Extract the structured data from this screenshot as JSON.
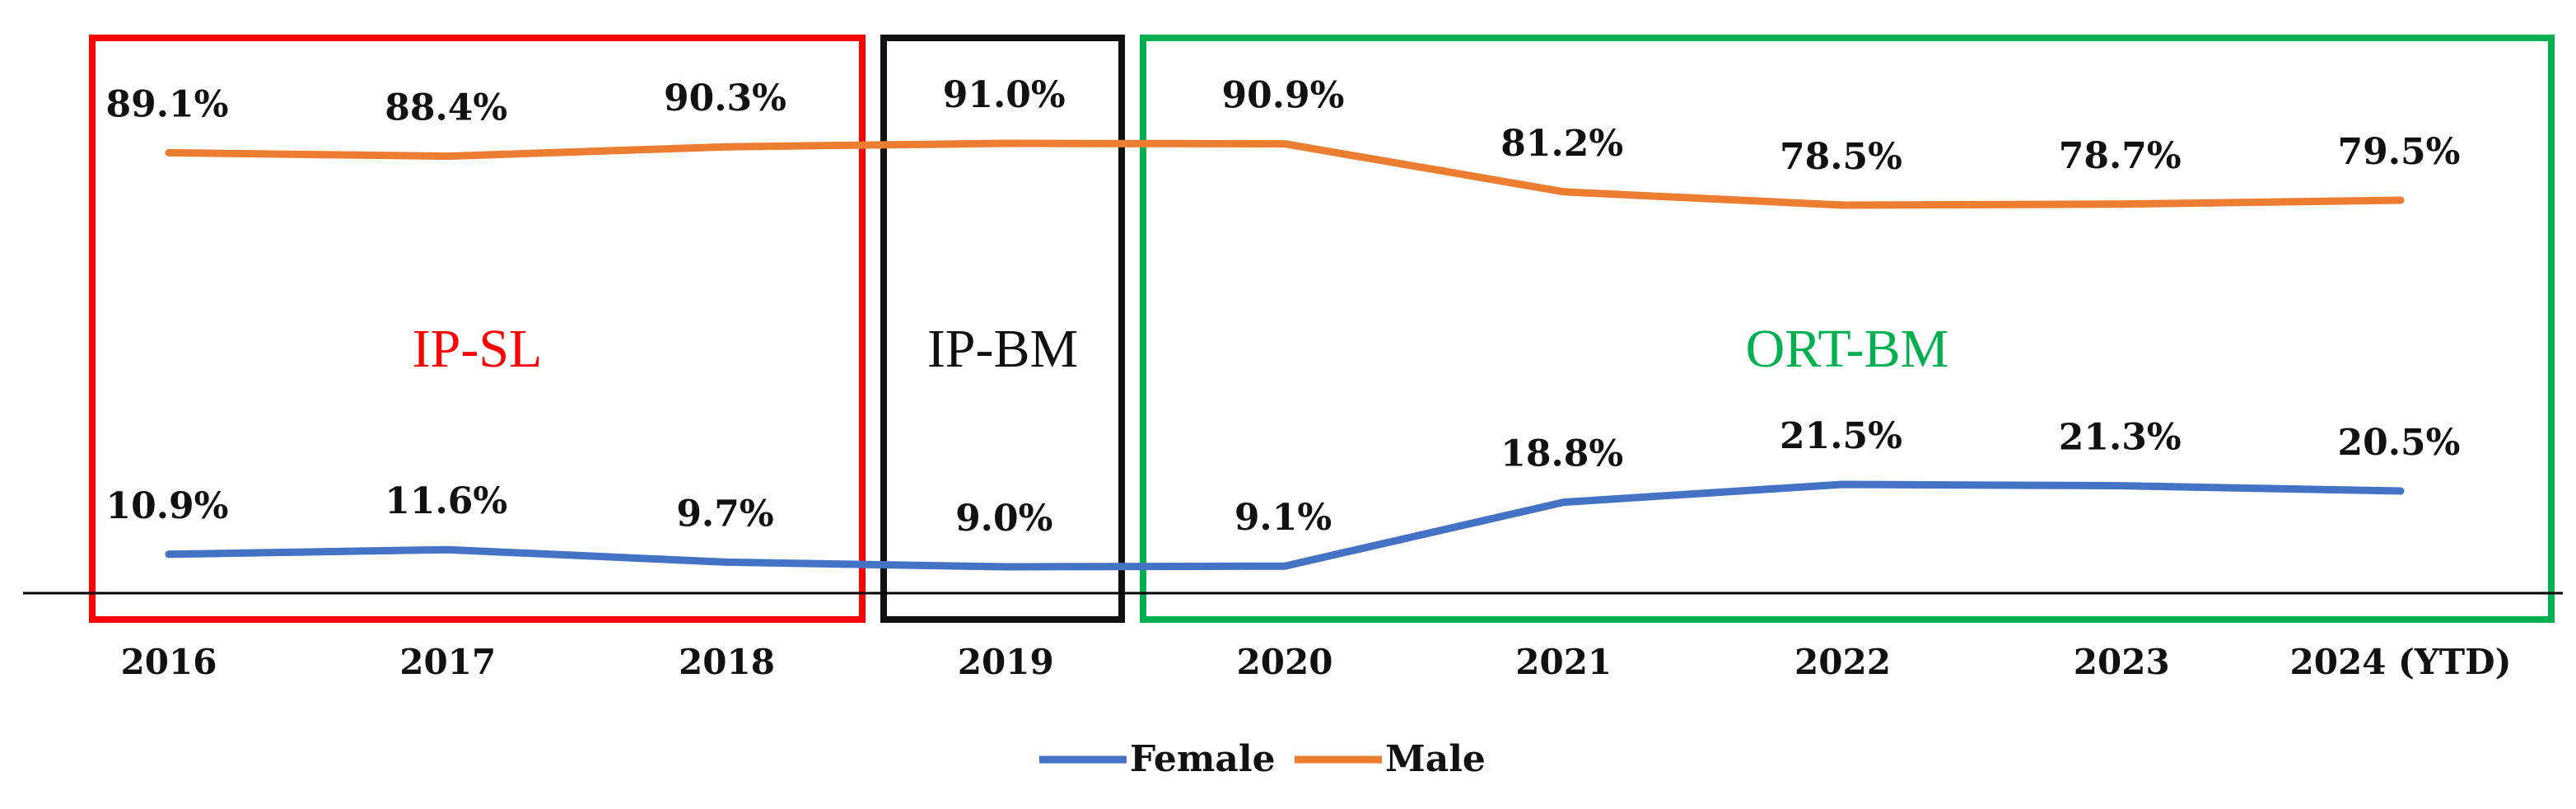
{
  "chart_data": {
    "type": "line",
    "categories": [
      "2016",
      "2017",
      "2018",
      "2019",
      "2020",
      "2021",
      "2022",
      "2023",
      "2024 (YTD)"
    ],
    "series": [
      {
        "name": "Female",
        "color": "#4472C4",
        "values": [
          10.9,
          11.6,
          9.7,
          9.0,
          9.1,
          18.8,
          21.5,
          21.3,
          20.5
        ],
        "labels": [
          "10.9%",
          "11.6%",
          "9.7%",
          "9.0%",
          "9.1%",
          "18.8%",
          "21.5%",
          "21.3%",
          "20.5%"
        ]
      },
      {
        "name": "Male",
        "color": "#ED7D31",
        "values": [
          89.1,
          88.4,
          90.3,
          91.0,
          90.9,
          81.2,
          78.5,
          78.7,
          79.5
        ],
        "labels": [
          "89.1%",
          "88.4%",
          "90.3%",
          "91.0%",
          "90.9%",
          "81.2%",
          "78.5%",
          "78.7%",
          "79.5%"
        ]
      }
    ],
    "regions": [
      {
        "label": "IP-SL",
        "color": "#FF0000",
        "categories": [
          "2016",
          "2017",
          "2018"
        ]
      },
      {
        "label": "IP-BM",
        "color": "#111111",
        "categories": [
          "2019"
        ]
      },
      {
        "label": "ORT-BM",
        "color": "#00B050",
        "categories": [
          "2020",
          "2021",
          "2022",
          "2023",
          "2024 (YTD)"
        ]
      }
    ],
    "ylim": [
      0,
      100
    ],
    "legend_position": "bottom-center",
    "grid": false
  }
}
